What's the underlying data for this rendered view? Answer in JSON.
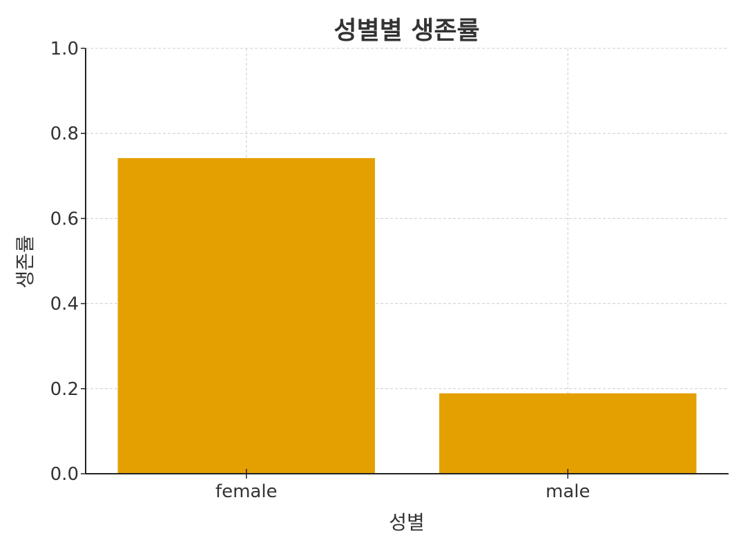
{
  "chart_data": {
    "type": "bar",
    "title": "성별별 생존률",
    "xlabel": "성별",
    "ylabel": "생존률",
    "categories": [
      "female",
      "male"
    ],
    "values": [
      0.742,
      0.189
    ],
    "ylim": [
      0,
      1.0
    ],
    "yticks": [
      "0.0",
      "0.2",
      "0.4",
      "0.6",
      "0.8",
      "1.0"
    ],
    "bar_color": "#E3A000",
    "grid": true,
    "legend": "none"
  }
}
